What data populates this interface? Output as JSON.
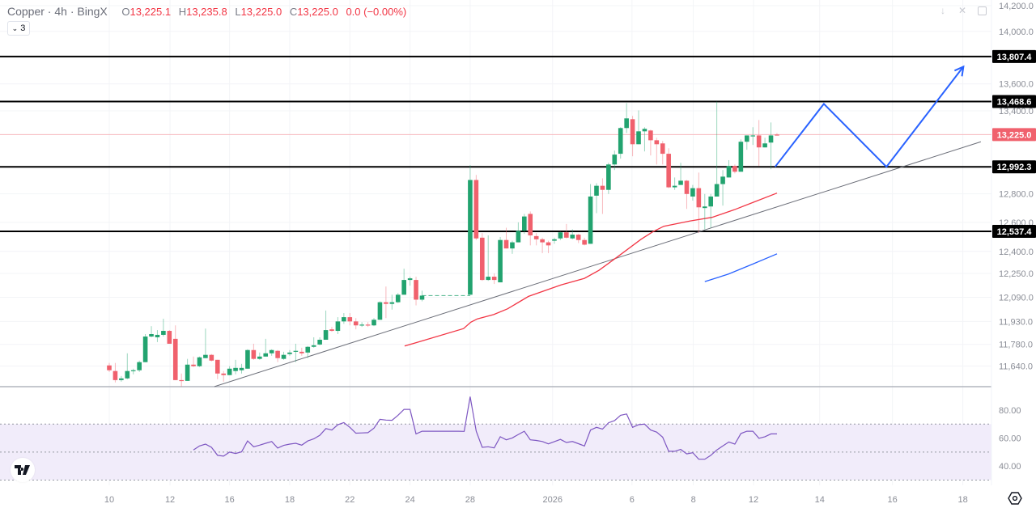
{
  "header": {
    "symbol": "Copper · 4h · BingX",
    "open_label": "O",
    "open": "13,225.1",
    "high_label": "H",
    "high": "13,235.8",
    "low_label": "L",
    "low": "13,225.0",
    "close_label": "C",
    "close": "13,225.0",
    "change": "0.0 (−0.00%)",
    "indicators_count": "3"
  },
  "colors": {
    "up": "#22a36f",
    "down": "#f0616d",
    "ma_red": "#f23645",
    "ma_blue": "#2962ff",
    "rsi": "#7e57c2",
    "rsi_band": "#f1ecfa",
    "projection": "#2962ff",
    "level": "#000000",
    "trend": "#787b86"
  },
  "chart_data": {
    "type": "candlestick",
    "scale": "log",
    "ylim": [
      11480,
      14230
    ],
    "price_ticks": [
      "14,200.0",
      "14,000.0",
      "13,600.0",
      "13,400.0",
      "12,800.0",
      "12,600.0",
      "12,400.0",
      "12,250.0",
      "12,090.0",
      "11,930.0",
      "11,780.0",
      "11,640.0"
    ],
    "price_tick_values": [
      14200,
      14000,
      13600,
      13400,
      12800,
      12600,
      12400,
      12250,
      12090,
      11930,
      11780,
      11640
    ],
    "x_ticks": [
      {
        "label": "10",
        "bar": 0
      },
      {
        "label": "12",
        "bar": 10.1
      },
      {
        "label": "16",
        "bar": 20
      },
      {
        "label": "18",
        "bar": 30
      },
      {
        "label": "22",
        "bar": 40
      },
      {
        "label": "24",
        "bar": 50
      },
      {
        "label": "28",
        "bar": 60
      },
      {
        "label": "2026",
        "bar": 73.7
      },
      {
        "label": "6",
        "bar": 86.9
      },
      {
        "label": "8",
        "bar": 97.1
      },
      {
        "label": "12",
        "bar": 107.1
      },
      {
        "label": "14",
        "bar": 118.1
      },
      {
        "label": "16",
        "bar": 130.2
      },
      {
        "label": "18",
        "bar": 141.9
      }
    ],
    "ohlc": [
      [
        11644,
        11660,
        11602,
        11613
      ],
      [
        11608,
        11660,
        11535,
        11550
      ],
      [
        11550,
        11576,
        11540,
        11561
      ],
      [
        11561,
        11722,
        11556,
        11608
      ],
      [
        11608,
        11623,
        11587,
        11613
      ],
      [
        11613,
        11675,
        11602,
        11665
      ],
      [
        11665,
        11847,
        11665,
        11831
      ],
      [
        11831,
        11899,
        11826,
        11847
      ],
      [
        11826,
        11873,
        11795,
        11842
      ],
      [
        11842,
        11948,
        11831,
        11868
      ],
      [
        11868,
        11873,
        11784,
        11784
      ],
      [
        11816,
        11904,
        11550,
        11550
      ],
      [
        11550,
        11592,
        11509,
        11545
      ],
      [
        11545,
        11686,
        11545,
        11649
      ],
      [
        11649,
        11701,
        11634,
        11639
      ],
      [
        11639,
        11701,
        11634,
        11696
      ],
      [
        11691,
        11883,
        11691,
        11712
      ],
      [
        11712,
        11717,
        11670,
        11675
      ],
      [
        11680,
        11680,
        11556,
        11592
      ],
      [
        11592,
        11608,
        11540,
        11582
      ],
      [
        11582,
        11639,
        11582,
        11623
      ],
      [
        11608,
        11680,
        11587,
        11628
      ],
      [
        11613,
        11654,
        11592,
        11628
      ],
      [
        11623,
        11748,
        11623,
        11743
      ],
      [
        11743,
        11784,
        11680,
        11686
      ],
      [
        11686,
        11727,
        11680,
        11701
      ],
      [
        11701,
        11816,
        11701,
        11722
      ],
      [
        11722,
        11748,
        11706,
        11743
      ],
      [
        11738,
        11743,
        11665,
        11691
      ],
      [
        11686,
        11732,
        11680,
        11712
      ],
      [
        11717,
        11743,
        11706,
        11727
      ],
      [
        11732,
        11784,
        11665,
        11738
      ],
      [
        11732,
        11758,
        11706,
        11722
      ],
      [
        11727,
        11769,
        11691,
        11764
      ],
      [
        11764,
        11826,
        11758,
        11774
      ],
      [
        11779,
        11826,
        11774,
        11810
      ],
      [
        11810,
        12002,
        11810,
        11873
      ],
      [
        11878,
        11894,
        11862,
        11868
      ],
      [
        11868,
        11958,
        11847,
        11930
      ],
      [
        11930,
        11985,
        11914,
        11958
      ],
      [
        11958,
        11985,
        11904,
        11930
      ],
      [
        11930,
        11952,
        11878,
        11904
      ],
      [
        11904,
        11925,
        11894,
        11909
      ],
      [
        11909,
        11925,
        11894,
        11904
      ],
      [
        11904,
        11952,
        11899,
        11941
      ],
      [
        11941,
        12063,
        11941,
        12057
      ],
      [
        12057,
        12162,
        11952,
        12046
      ],
      [
        12046,
        12107,
        12008,
        12057
      ],
      [
        12057,
        12118,
        12052,
        12107
      ],
      [
        12107,
        12282,
        12107,
        12206
      ],
      [
        12206,
        12228,
        12168,
        12217
      ],
      [
        12206,
        12228,
        12036,
        12074
      ],
      [
        12074,
        12134,
        12063,
        12101
      ],
      [
        12101,
        12105,
        12098,
        12101
      ],
      [
        12101,
        12105,
        12098,
        12101
      ],
      [
        12101,
        12105,
        12098,
        12101
      ],
      [
        12101,
        12105,
        12098,
        12101
      ],
      [
        12101,
        12105,
        12098,
        12101
      ],
      [
        12101,
        12105,
        12098,
        12101
      ],
      [
        12101,
        12105,
        12098,
        12101
      ],
      [
        12107,
        13004,
        12107,
        12898
      ],
      [
        12898,
        12934,
        12478,
        12489
      ],
      [
        12494,
        12526,
        12200,
        12206
      ],
      [
        12206,
        12510,
        12200,
        12228
      ],
      [
        12228,
        12250,
        12179,
        12206
      ],
      [
        12190,
        12499,
        12190,
        12478
      ],
      [
        12478,
        12563,
        12420,
        12420
      ],
      [
        12420,
        12473,
        12383,
        12462
      ],
      [
        12462,
        12600,
        12462,
        12542
      ],
      [
        12542,
        12659,
        12520,
        12641
      ],
      [
        12659,
        12676,
        12441,
        12510
      ],
      [
        12505,
        12526,
        12441,
        12483
      ],
      [
        12483,
        12494,
        12388,
        12462
      ],
      [
        12462,
        12473,
        12388,
        12441
      ],
      [
        12473,
        12494,
        12452,
        12483
      ],
      [
        12489,
        12536,
        12478,
        12531
      ],
      [
        12531,
        12589,
        12489,
        12494
      ],
      [
        12489,
        12552,
        12483,
        12515
      ],
      [
        12515,
        12520,
        12457,
        12478
      ],
      [
        12478,
        12494,
        12441,
        12446
      ],
      [
        12452,
        12869,
        12452,
        12781
      ],
      [
        12787,
        12875,
        12664,
        12857
      ],
      [
        12857,
        12910,
        12659,
        12828
      ],
      [
        12828,
        13021,
        12799,
        13009
      ],
      [
        13009,
        13109,
        12969,
        13080
      ],
      [
        13086,
        13279,
        13051,
        13273
      ],
      [
        13273,
        13457,
        13237,
        13344
      ],
      [
        13338,
        13362,
        13068,
        13155
      ],
      [
        13155,
        13403,
        13155,
        13249
      ],
      [
        13249,
        13279,
        13103,
        13267
      ],
      [
        13255,
        13261,
        13074,
        13184
      ],
      [
        13184,
        13202,
        13009,
        13155
      ],
      [
        13161,
        13179,
        13009,
        13086
      ],
      [
        13086,
        13126,
        12840,
        12846
      ],
      [
        12846,
        12916,
        12828,
        12857
      ],
      [
        12863,
        13021,
        12863,
        12893
      ],
      [
        12893,
        12898,
        12694,
        12799
      ],
      [
        12781,
        12863,
        12752,
        12840
      ],
      [
        12840,
        12951,
        12526,
        12705
      ],
      [
        12700,
        12799,
        12552,
        12711
      ],
      [
        12711,
        12799,
        12563,
        12781
      ],
      [
        12781,
        13468,
        12781,
        12869
      ],
      [
        12869,
        12969,
        12717,
        12922
      ],
      [
        12916,
        13040,
        12916,
        12998
      ],
      [
        12998,
        13009,
        12945,
        12957
      ],
      [
        12957,
        13190,
        12957,
        13173
      ],
      [
        13173,
        13219,
        13115,
        13219
      ],
      [
        13213,
        13279,
        13150,
        13219
      ],
      [
        13219,
        13332,
        12998,
        13132
      ],
      [
        13132,
        13202,
        13132,
        13161
      ],
      [
        13167,
        13314,
        12975,
        13219
      ],
      [
        13225.1,
        13235.8,
        13225.0,
        13225.0
      ]
    ],
    "flat_bars": [
      53,
      59
    ],
    "ma_red": [
      [
        49.1,
        11769
      ],
      [
        58.9,
        11883
      ],
      [
        60.1,
        11925
      ],
      [
        61.2,
        11947
      ],
      [
        63.9,
        11975
      ],
      [
        66.2,
        12013
      ],
      [
        69.7,
        12096
      ],
      [
        75.1,
        12173
      ],
      [
        79.0,
        12217
      ],
      [
        81.4,
        12271
      ],
      [
        84.8,
        12372
      ],
      [
        88.4,
        12483
      ],
      [
        90.4,
        12536
      ],
      [
        92.2,
        12573
      ],
      [
        96.6,
        12610
      ],
      [
        100.2,
        12635
      ],
      [
        103.9,
        12688
      ],
      [
        107.4,
        12746
      ],
      [
        111,
        12805
      ]
    ],
    "ma_blue": [
      [
        99.0,
        12195
      ],
      [
        102.9,
        12245
      ],
      [
        107.0,
        12314
      ],
      [
        111,
        12383
      ]
    ],
    "levels": [
      {
        "price": 13807.4,
        "label": "13,807.4"
      },
      {
        "price": 13468.6,
        "label": "13,468.6"
      },
      {
        "price": 12992.3,
        "label": "12,992.3"
      },
      {
        "price": 12537.4,
        "label": "12,537.4"
      }
    ],
    "last_price": {
      "price": 13225.0,
      "label": "13,225.0"
    },
    "trendline": [
      [
        17.5,
        11509
      ],
      [
        144.9,
        13173
      ]
    ],
    "projection": [
      [
        110.7,
        12992
      ],
      [
        118.8,
        13451
      ],
      [
        129.2,
        12992
      ],
      [
        142.0,
        13730
      ]
    ],
    "rsi": {
      "ticks": [
        "80.00",
        "60.00",
        "40.00"
      ],
      "tick_values": [
        80,
        60,
        40
      ],
      "band": [
        30,
        50,
        70
      ],
      "start_bar": 14,
      "values": [
        51.5,
        54.4,
        55.7,
        53.4,
        47.7,
        47.1,
        50,
        49,
        50.2,
        58,
        53.8,
        55,
        56.3,
        57.6,
        52.9,
        54.8,
        55.7,
        56.3,
        55,
        58,
        59.5,
        62,
        66.8,
        65.8,
        69.6,
        71.1,
        67.7,
        63.5,
        63.7,
        63.9,
        67.1,
        73.4,
        72.9,
        72.7,
        76.3,
        80.5,
        80.5,
        63,
        64.9,
        64.9,
        64.9,
        64.9,
        64.9,
        64.9,
        64.9,
        64.8,
        89.6,
        64.9,
        53.4,
        53.8,
        53,
        61,
        58.8,
        60.1,
        62.6,
        64.9,
        58.8,
        58.3,
        57.6,
        55.9,
        57.5,
        59.1,
        56.9,
        57.6,
        56,
        54.4,
        65.8,
        67.7,
        66.4,
        71,
        72.5,
        76.3,
        77.2,
        67.7,
        69.6,
        70,
        65.8,
        64.3,
        60.7,
        50.6,
        50.6,
        51.9,
        48.7,
        49.6,
        44.9,
        44.9,
        47.7,
        51.5,
        54.4,
        57.2,
        55.7,
        63.3,
        64.9,
        64.9,
        59.9,
        61,
        63,
        63
      ]
    }
  },
  "logo_text": "TV"
}
